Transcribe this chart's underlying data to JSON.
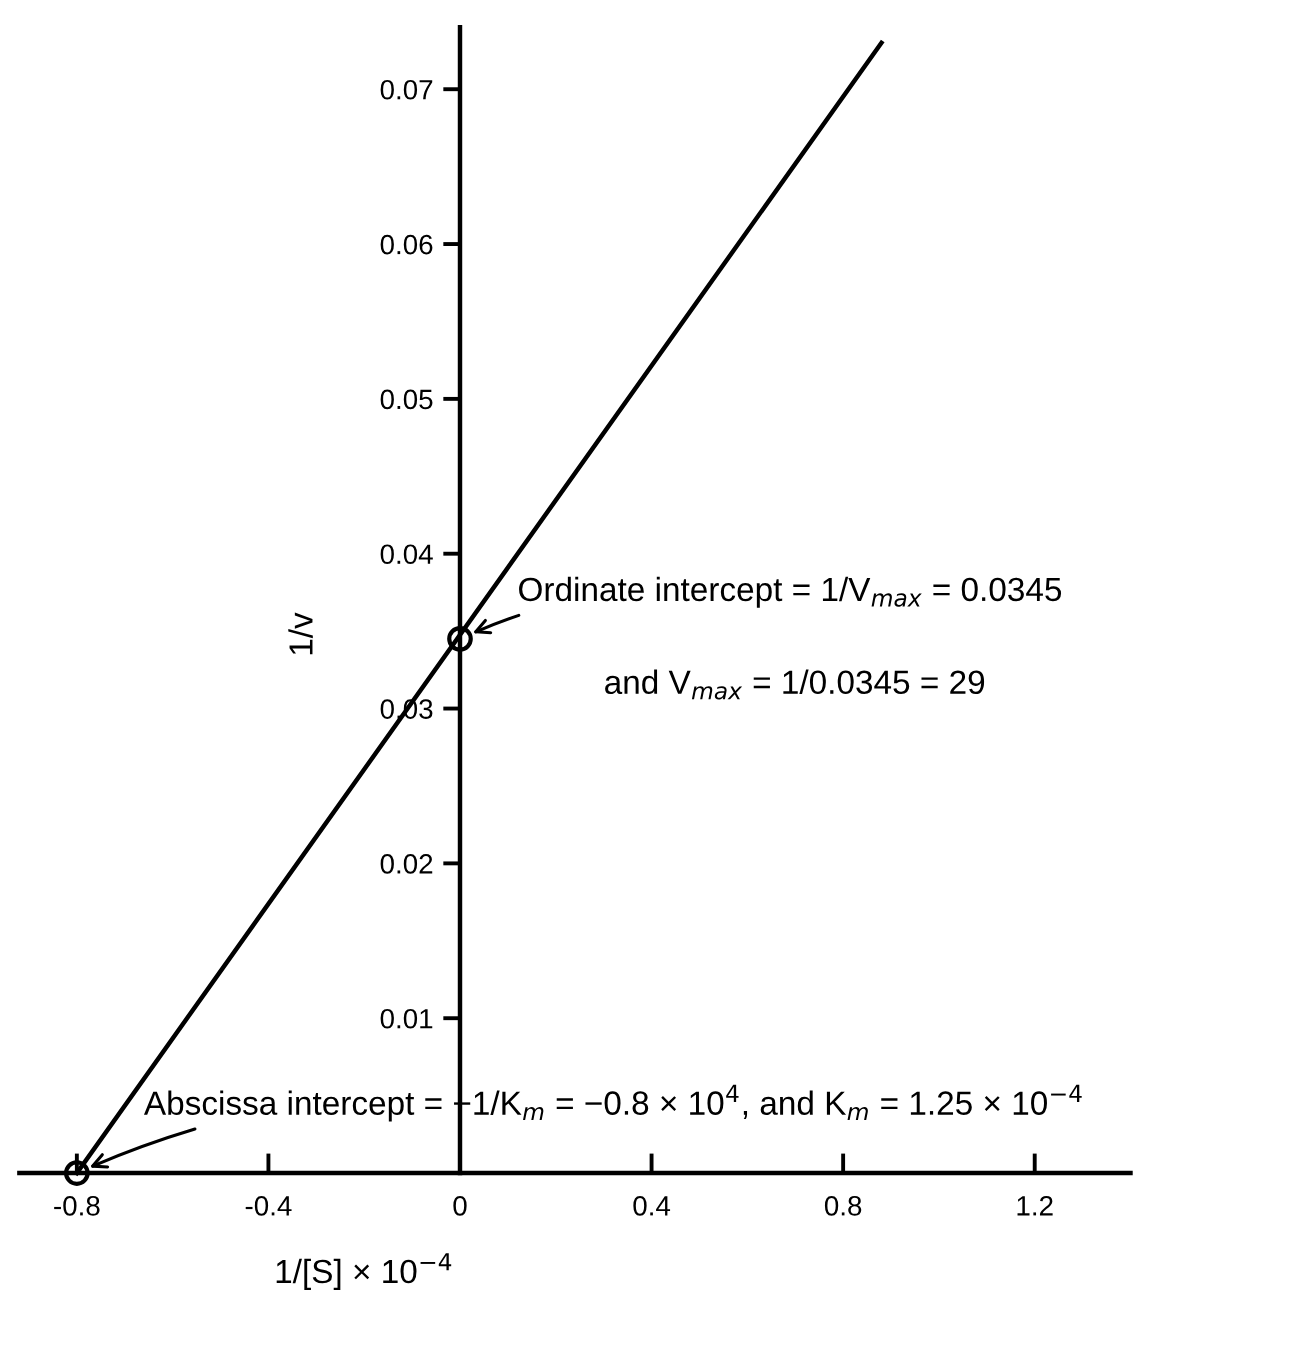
{
  "chart_data": {
    "type": "line",
    "xlabel": "1/[S] × 10$^{−4}$",
    "ylabel": "1/v",
    "series": [
      {
        "type": "line",
        "color": "#000000",
        "x": [
          -0.8,
          0.88
        ],
        "values": [
          0,
          0.073
        ],
        "marker": "none"
      },
      {
        "type": "scatter",
        "color": "#000000",
        "x": [
          -0.8,
          0
        ],
        "values": [
          0,
          0.0345
        ],
        "marker": "circle"
      }
    ],
    "xlim": [
      -0.92,
      1.4
    ],
    "ylim": [
      0,
      0.074
    ],
    "xticks": [
      -0.8,
      -0.4,
      0,
      0.4,
      0.8,
      1.2
    ],
    "yticks": [
      0.01,
      0.02,
      0.03,
      0.04,
      0.05,
      0.06,
      0.07
    ],
    "annotations": [
      {
        "text": "Ordinate intercept = 1/V$_{max}$ = 0.0345",
        "x": 0,
        "y": 0.0345
      },
      "and V$_{max}$ = 1/0.0345 = 29",
      {
        "text": "Abscissa intercept = −1/K$_{m}$ = −0.8 × 10$^{4}$, and K$_{m}$ = 1.25 × 10$^{−4}$",
        "x": -0.8,
        "y": 0
      }
    ],
    "grid": false,
    "legend": false
  }
}
